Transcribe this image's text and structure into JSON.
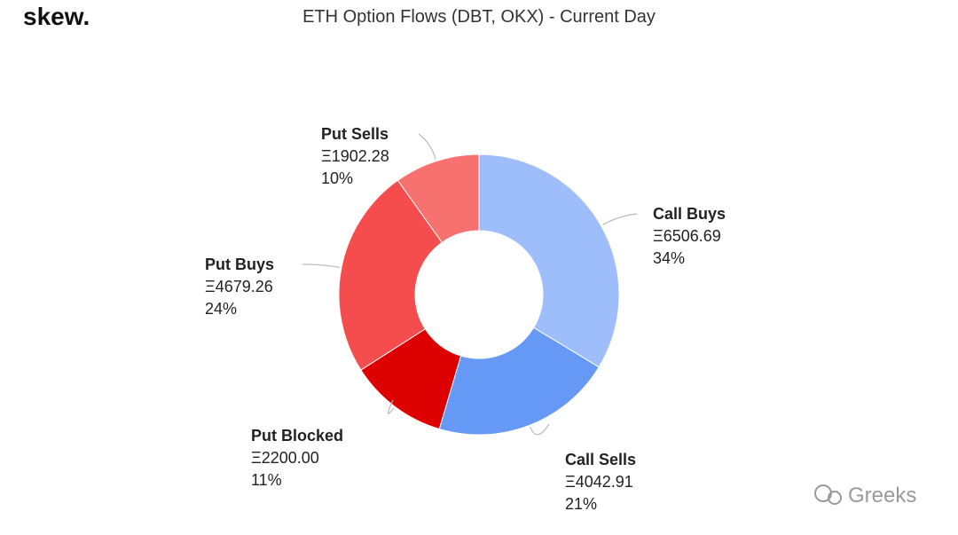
{
  "brand": "skew.",
  "watermark": "Greeks",
  "chart_data": {
    "type": "donut",
    "title": "ETH Option Flows (DBT, OKX) - Current Day",
    "categories": [
      "Call Buys",
      "Call Sells",
      "Put Blocked",
      "Put Buys",
      "Put Sells"
    ],
    "values": [
      6506.69,
      4042.91,
      2200.0,
      4679.26,
      1902.28
    ],
    "value_labels": [
      "Ξ6506.69",
      "Ξ4042.91",
      "Ξ2200.00",
      "Ξ4679.26",
      "Ξ1902.28"
    ],
    "percent_labels": [
      "34%",
      "21%",
      "11%",
      "24%",
      "10%"
    ],
    "colors": [
      "#9dbdfb",
      "#6699f5",
      "#dd0000",
      "#f54d4d",
      "#f87171"
    ]
  }
}
